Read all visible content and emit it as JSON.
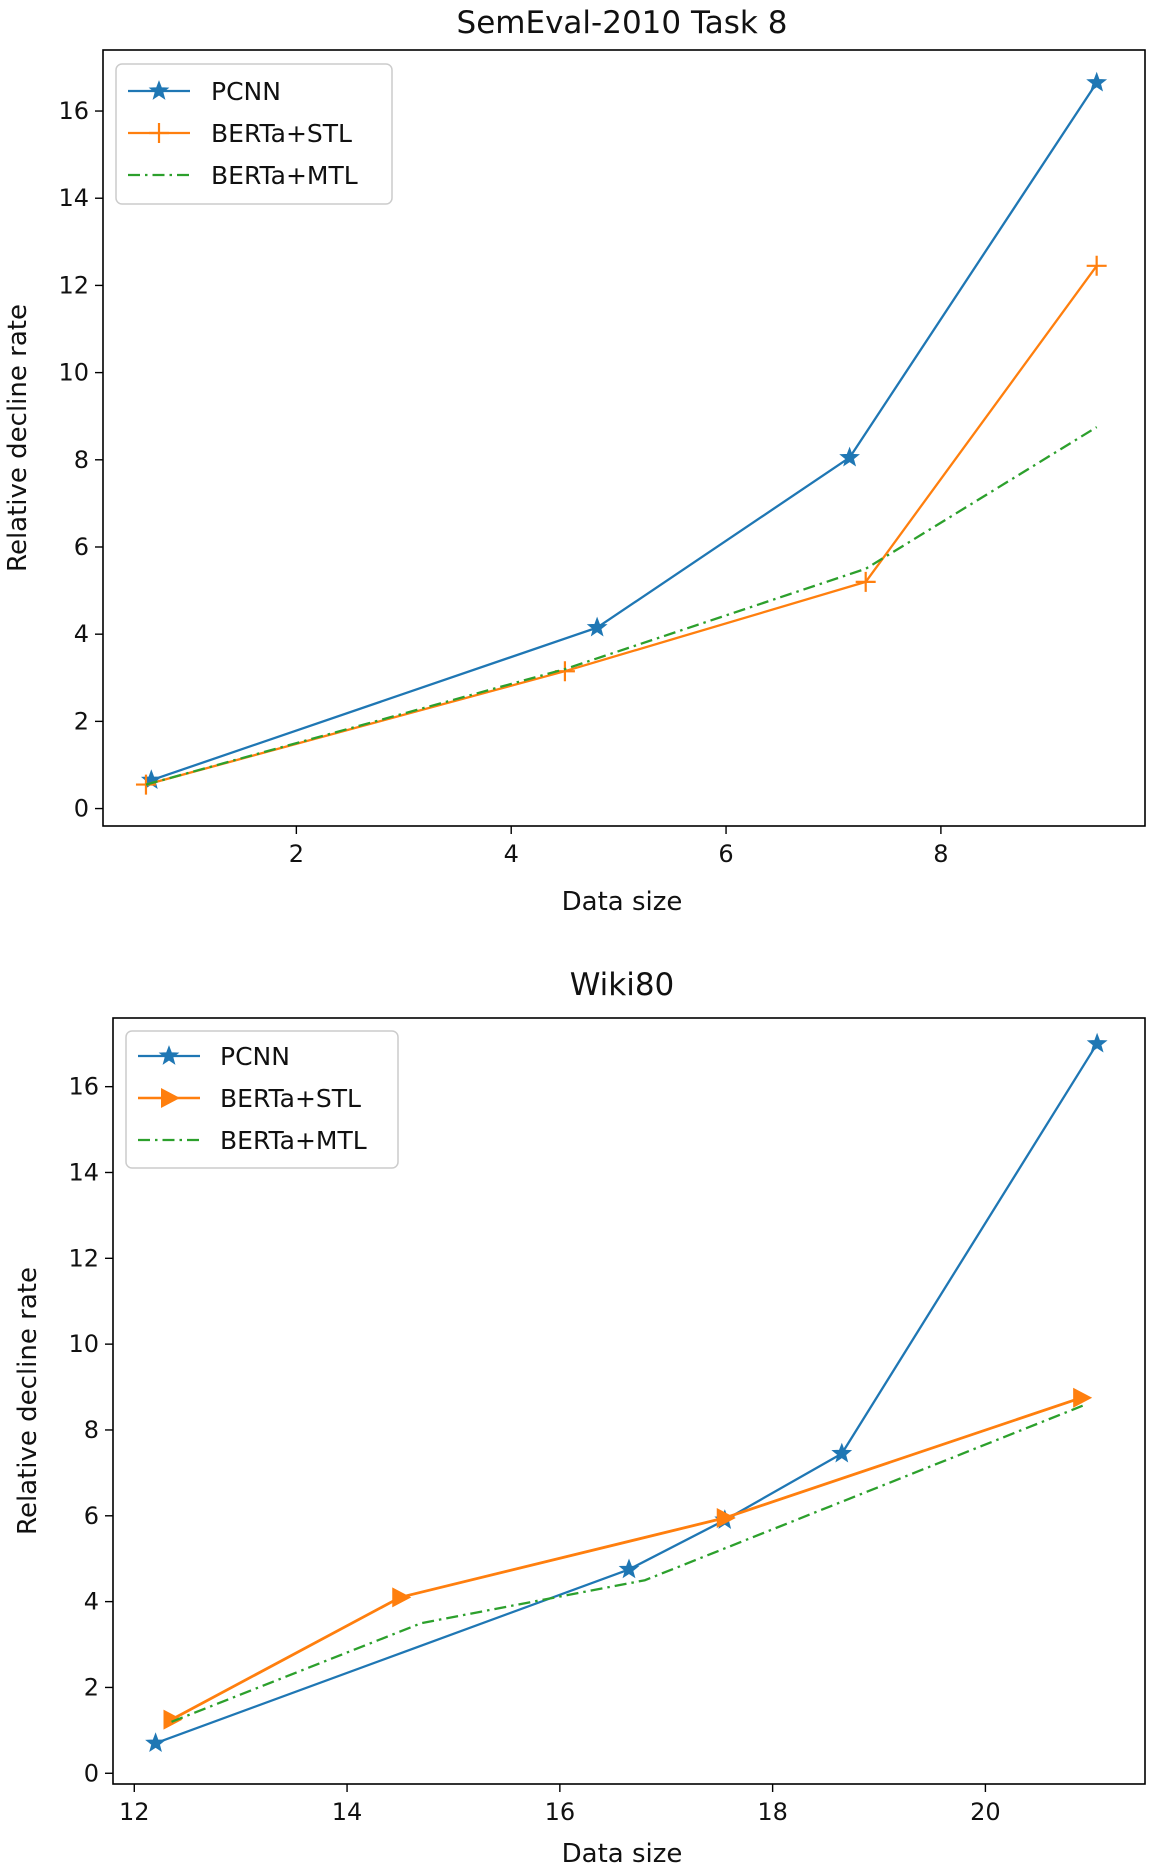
{
  "chart_data": [
    {
      "type": "line",
      "title": "SemEval-2010 Task 8",
      "xlabel": "Data size",
      "ylabel": "Relative decline rate",
      "xlim": [
        0.2,
        9.9
      ],
      "ylim": [
        -0.4,
        17.4
      ],
      "xticks": [
        2,
        4,
        6,
        8
      ],
      "yticks": [
        0,
        2,
        4,
        6,
        8,
        10,
        12,
        14,
        16
      ],
      "xtick_labels": [
        "2",
        "4",
        "6",
        "8"
      ],
      "ytick_labels": [
        "0",
        "2",
        "4",
        "6",
        "8",
        "10",
        "12",
        "14",
        "16"
      ],
      "legend_position": "top-left",
      "grid": false,
      "series": [
        {
          "name": "PCNN",
          "color": "#1f77b4",
          "marker": "star",
          "dash": "solid",
          "x": [
            0.65,
            4.8,
            7.15,
            9.45
          ],
          "y": [
            0.65,
            4.15,
            8.05,
            16.65
          ]
        },
        {
          "name": "BERTa+STL",
          "color": "#ff7f0e",
          "marker": "plus",
          "dash": "solid",
          "x": [
            0.6,
            4.5,
            7.3,
            9.45
          ],
          "y": [
            0.55,
            3.15,
            5.2,
            12.45
          ]
        },
        {
          "name": "BERTa+MTL",
          "color": "#2ca02c",
          "marker": "none",
          "dash": "dashdot",
          "x": [
            0.6,
            4.5,
            7.3,
            9.45
          ],
          "y": [
            0.55,
            3.2,
            5.5,
            8.75
          ]
        }
      ]
    },
    {
      "type": "line",
      "title": "Wiki80",
      "xlabel": "Data size",
      "ylabel": "Relative decline rate",
      "xlim": [
        11.8,
        21.5
      ],
      "ylim": [
        -0.25,
        17.6
      ],
      "xticks": [
        12,
        14,
        16,
        18,
        20
      ],
      "yticks": [
        0,
        2,
        4,
        6,
        8,
        10,
        12,
        14,
        16
      ],
      "xtick_labels": [
        "12",
        "14",
        "16",
        "18",
        "20"
      ],
      "ytick_labels": [
        "0",
        "2",
        "4",
        "6",
        "8",
        "10",
        "12",
        "14",
        "16"
      ],
      "legend_position": "top-left",
      "grid": false,
      "series": [
        {
          "name": "PCNN",
          "color": "#1f77b4",
          "marker": "star",
          "dash": "solid",
          "x": [
            12.2,
            16.65,
            17.55,
            18.65,
            21.05
          ],
          "y": [
            0.7,
            4.75,
            5.9,
            7.45,
            17.0
          ]
        },
        {
          "name": "BERTa+STL",
          "color": "#ff7f0e",
          "marker": "triangle-right",
          "dash": "solid",
          "x": [
            12.35,
            14.5,
            17.55,
            20.9
          ],
          "y": [
            1.25,
            4.1,
            5.95,
            8.75
          ]
        },
        {
          "name": "BERTa+MTL",
          "color": "#2ca02c",
          "marker": "none",
          "dash": "dashdot",
          "x": [
            12.35,
            14.7,
            16.8,
            20.95
          ],
          "y": [
            1.2,
            3.5,
            4.5,
            8.6
          ]
        }
      ]
    }
  ]
}
